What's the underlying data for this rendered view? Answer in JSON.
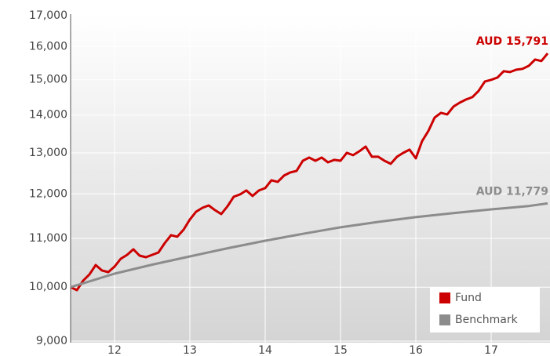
{
  "chart_data": {
    "type": "line",
    "x": [
      11.417,
      11.5,
      11.583,
      11.667,
      11.75,
      11.833,
      11.917,
      12,
      12.083,
      12.167,
      12.25,
      12.333,
      12.417,
      12.5,
      12.583,
      12.667,
      12.75,
      12.833,
      12.917,
      13,
      13.083,
      13.167,
      13.25,
      13.333,
      13.417,
      13.5,
      13.583,
      13.667,
      13.75,
      13.833,
      13.917,
      14,
      14.083,
      14.167,
      14.25,
      14.333,
      14.417,
      14.5,
      14.583,
      14.667,
      14.75,
      14.833,
      14.917,
      15,
      15.083,
      15.167,
      15.25,
      15.333,
      15.417,
      15.5,
      15.583,
      15.667,
      15.75,
      15.833,
      15.917,
      16,
      16.083,
      16.167,
      16.25,
      16.333,
      16.417,
      16.5,
      16.583,
      16.667,
      16.75,
      16.833,
      16.917,
      17,
      17.083,
      17.167,
      17.25,
      17.333,
      17.417,
      17.5,
      17.583,
      17.667,
      17.75
    ],
    "series": [
      {
        "name": "Fund",
        "color": "#cc0000",
        "end_label": "AUD 15,791",
        "values": [
          10000,
          9942,
          10128,
          10253,
          10443,
          10332,
          10300,
          10411,
          10572,
          10653,
          10769,
          10637,
          10604,
          10653,
          10702,
          10901,
          11070,
          11036,
          11189,
          11414,
          11590,
          11679,
          11733,
          11626,
          11537,
          11715,
          11933,
          11988,
          12080,
          11951,
          12080,
          12136,
          12324,
          12286,
          12438,
          12514,
          12552,
          12804,
          12883,
          12804,
          12883,
          12765,
          12824,
          12804,
          13002,
          12943,
          13042,
          13163,
          12904,
          12904,
          12804,
          12727,
          12904,
          13002,
          13083,
          12864,
          13305,
          13572,
          13931,
          14060,
          14017,
          14234,
          14342,
          14432,
          14498,
          14676,
          14950,
          14996,
          15065,
          15251,
          15227,
          15297,
          15322,
          15415,
          15605,
          15558,
          15791
        ]
      },
      {
        "name": "Benchmark",
        "color": "#8c8c8c",
        "end_label": "AUD 11,779",
        "x": [
          11.417,
          12,
          12.5,
          13,
          13.5,
          14,
          14.5,
          15,
          15.5,
          16,
          16.5,
          17,
          17.5,
          17.75
        ],
        "values": [
          10000,
          10268,
          10450,
          10620,
          10790,
          10951,
          11100,
          11241,
          11360,
          11467,
          11560,
          11643,
          11720,
          11779
        ]
      }
    ],
    "xlim": [
      11.417,
      17.75
    ],
    "xticks": [
      12,
      13,
      14,
      15,
      16,
      17
    ],
    "ylim": [
      9000,
      17000
    ],
    "log_y": true,
    "yticks": [
      {
        "value": 9000,
        "label": "9,000"
      },
      {
        "value": 10000,
        "label": "10,000"
      },
      {
        "value": 11000,
        "label": "11,000"
      },
      {
        "value": 12000,
        "label": "12,000"
      },
      {
        "value": 13000,
        "label": "13,000"
      },
      {
        "value": 14000,
        "label": "14,000"
      },
      {
        "value": 15000,
        "label": "15,000"
      },
      {
        "value": 16000,
        "label": "16,000"
      },
      {
        "value": 17000,
        "label": "17,000"
      }
    ],
    "grid": true,
    "legend": "lower right"
  }
}
